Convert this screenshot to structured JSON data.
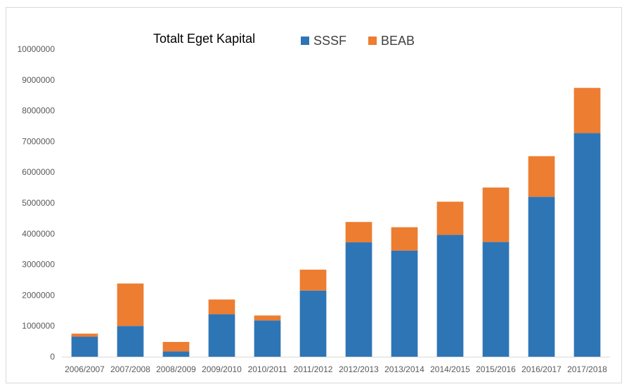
{
  "chart_data": {
    "type": "bar",
    "stacked": true,
    "title": "Totalt Eget Kapital",
    "xlabel": "",
    "ylabel": "",
    "ylim": [
      0,
      10000000
    ],
    "yticks": [
      0,
      1000000,
      2000000,
      3000000,
      4000000,
      5000000,
      6000000,
      7000000,
      8000000,
      9000000,
      10000000
    ],
    "grid": false,
    "legend_position": "top",
    "categories": [
      "2006/2007",
      "2007/2008",
      "2008/2009",
      "2009/2010",
      "2010/2011",
      "2011/2012",
      "2012/2013",
      "2013/2014",
      "2014/2015",
      "2015/2016",
      "2016/2017",
      "2017/2018"
    ],
    "series": [
      {
        "name": "SSSF",
        "color": "#2e75b6",
        "values": [
          650000,
          1000000,
          170000,
          1380000,
          1180000,
          2150000,
          3720000,
          3450000,
          3960000,
          3730000,
          5200000,
          7270000
        ]
      },
      {
        "name": "BEAB",
        "color": "#ed7d31",
        "values": [
          100000,
          1380000,
          310000,
          480000,
          160000,
          680000,
          660000,
          760000,
          1080000,
          1770000,
          1320000,
          1470000
        ]
      }
    ]
  }
}
